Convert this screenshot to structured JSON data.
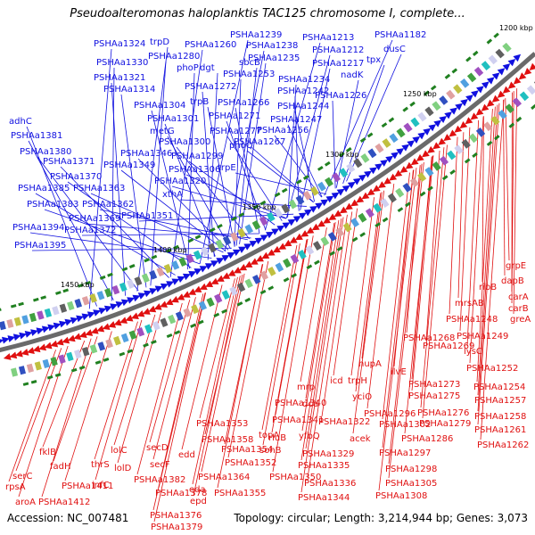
{
  "title": "Pseudoalteromonas haloplanktis TAC125 chromosome I, complete...",
  "accession_text": "Accession: NC_007481",
  "summary_text": "Topology: circular; Length: 3,214,944 bp; Genes: 3,073",
  "colors": {
    "forward": "#1010e0",
    "reverse": "#e01010",
    "backbone": "#808080",
    "tick_marker": "#208020"
  },
  "scale_labels": [
    "1200 kbp",
    "1250 kbp",
    "1300 kbp",
    "1350 kbp",
    "1400 kbp",
    "1450 kbp"
  ],
  "forward_labels": [
    "PSHAa1324",
    "trpD",
    "PSHAa1260",
    "PSHAa1239",
    "PSHAa1238",
    "PSHAa1213",
    "PSHAa1182",
    "PSHAa1330",
    "PSHAa1280",
    "PSHAa1235",
    "PSHAa1212",
    "dusC",
    "phoP",
    "dgt",
    "sbcB",
    "PSHAa1217",
    "tpx",
    "PSHAa1321",
    "PSHAa1253",
    "PSHAa1234",
    "nadK",
    "PSHAa1314",
    "PSHAa1272",
    "PSHAa1242",
    "PSHAa1226",
    "trpB",
    "PSHAa1266",
    "PSHAa1244",
    "PSHAa1304",
    "PSHAa1271",
    "PSHAa1247",
    "adhC",
    "PSHAa1301",
    "PSHAa1277",
    "PSHAa1256",
    "PSHAa1381",
    "metG",
    "phoQ",
    "PSHAa1267",
    "PSHAa1300",
    "PSHAa1380",
    "PSHAa1346",
    "PSHAa1299",
    "PSHAa1371",
    "PSHAa1349",
    "PSHAa1306",
    "trpE",
    "PSHAa1370",
    "PSHAa1320",
    "PSHAa1385",
    "PSHAa1363",
    "xthA",
    "PSHAa1383",
    "PSHAa1362",
    "PSHAa1369",
    "PSHAa1351",
    "PSHAa1394",
    "PSHAa1372",
    "PSHAa1395"
  ],
  "reverse_labels": [
    "grpE",
    "dapB",
    "ribB",
    "carA",
    "carB",
    "mrsAB",
    "greA",
    "PSHAa1248",
    "PSHAa1249",
    "PSHAa1268",
    "PSHAa1269",
    "lysC",
    "hupA",
    "PSHAa1252",
    "ilvE",
    "PSHAa1254",
    "trpH",
    "icd",
    "PSHAa1273",
    "PSHAa1275",
    "PSHAa1257",
    "mrp",
    "yciO",
    "PSHAa1340",
    "dcd",
    "PSHAa1296",
    "PSHAa1276",
    "PSHAa1258",
    "PSHAa1341",
    "PSHAa1322",
    "PSHAa1302",
    "PSHAa1279",
    "PSHAa1353",
    "yfbQ",
    "acek",
    "PSHAa1261",
    "topA",
    "rluB",
    "PSHAa1286",
    "PSHAa1262",
    "PSHAa1358",
    "PSHAa1354",
    "sohB",
    "PSHAa1329",
    "PSHAa1297",
    "edd",
    "PSHAa1352",
    "PSHAa1335",
    "PSHAa1298",
    "secD",
    "secF",
    "PSHAa1350",
    "PSHAa1336",
    "lolC",
    "fklB",
    "fadH",
    "thrS",
    "lolD",
    "PSHAa1364",
    "PSHAa1305",
    "serC",
    "PSHAa1382",
    "eda",
    "PSHAa1355",
    "PSHAa1344",
    "PSHAa1308",
    "rpsA",
    "PSHAa1411",
    "infC",
    "PSHAa1378",
    "epd",
    "aroA",
    "PSHAa1412",
    "PSHAa1376",
    "PSHAa1379"
  ]
}
